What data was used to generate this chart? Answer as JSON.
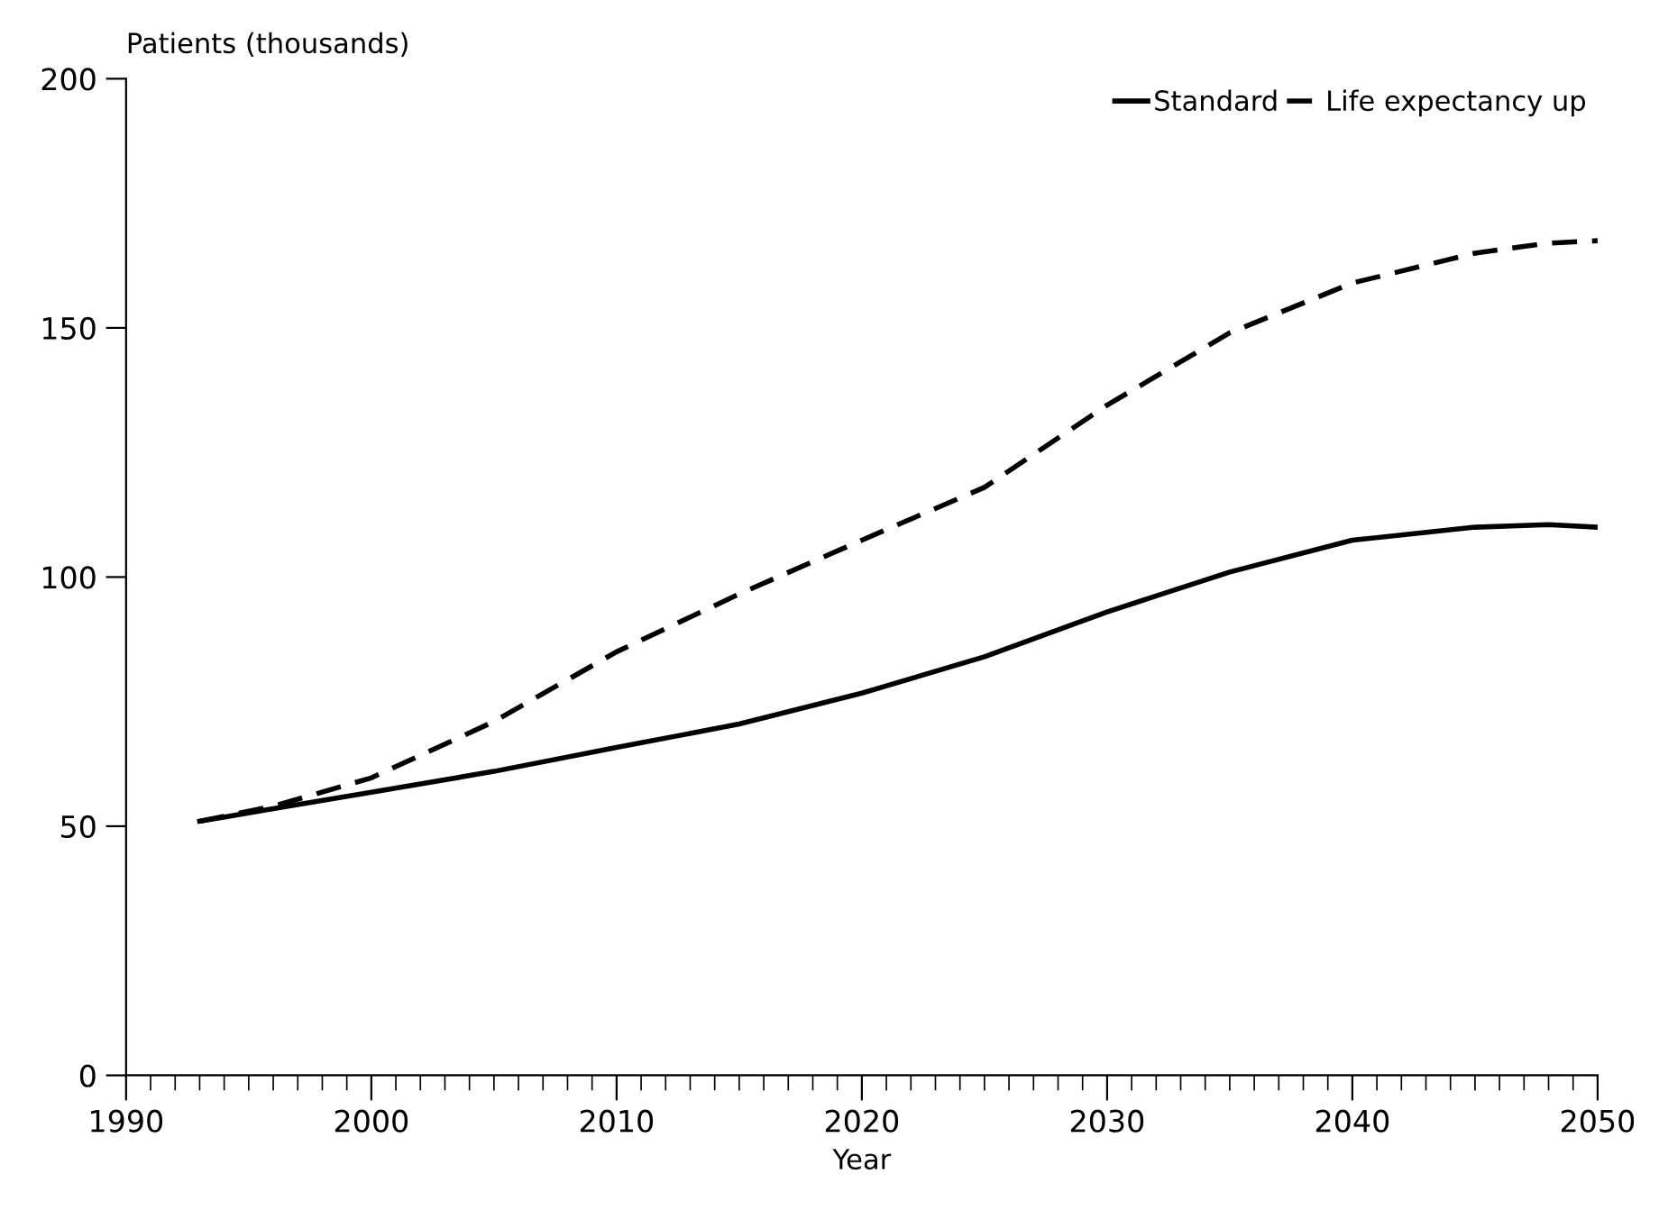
{
  "chart_data": {
    "type": "line",
    "ylabel": "Patients (thousands)",
    "xlabel": "Year",
    "xlim": [
      1990,
      2050
    ],
    "xticks": [
      1990,
      2000,
      2010,
      2020,
      2030,
      2040,
      2050
    ],
    "ylim": [
      0,
      200
    ],
    "yticks": [
      0,
      50,
      100,
      150,
      200
    ],
    "legend": "top right",
    "grid": false,
    "marker": "none",
    "series": [
      {
        "name": "Standard",
        "color": "#000000",
        "line_style": "solid",
        "x": [
          1993,
          1996,
          2000,
          2005,
          2010,
          2015,
          2020,
          2025,
          2030,
          2035,
          2040,
          2045,
          2048,
          2050
        ],
        "values": [
          51,
          53.5,
          56.8,
          61,
          65.8,
          70.5,
          76.7,
          84,
          93,
          101,
          107.4,
          110,
          110.5,
          110
        ]
      },
      {
        "name": "Life expectancy up",
        "color": "#000000",
        "line_style": "dashed",
        "x": [
          1993,
          1996,
          2000,
          2005,
          2010,
          2015,
          2020,
          2025,
          2030,
          2035,
          2040,
          2045,
          2048,
          2050
        ],
        "values": [
          51,
          54,
          59.7,
          71,
          85,
          96.6,
          107.4,
          118,
          134.5,
          149,
          159,
          165,
          167,
          167.5
        ]
      }
    ]
  }
}
